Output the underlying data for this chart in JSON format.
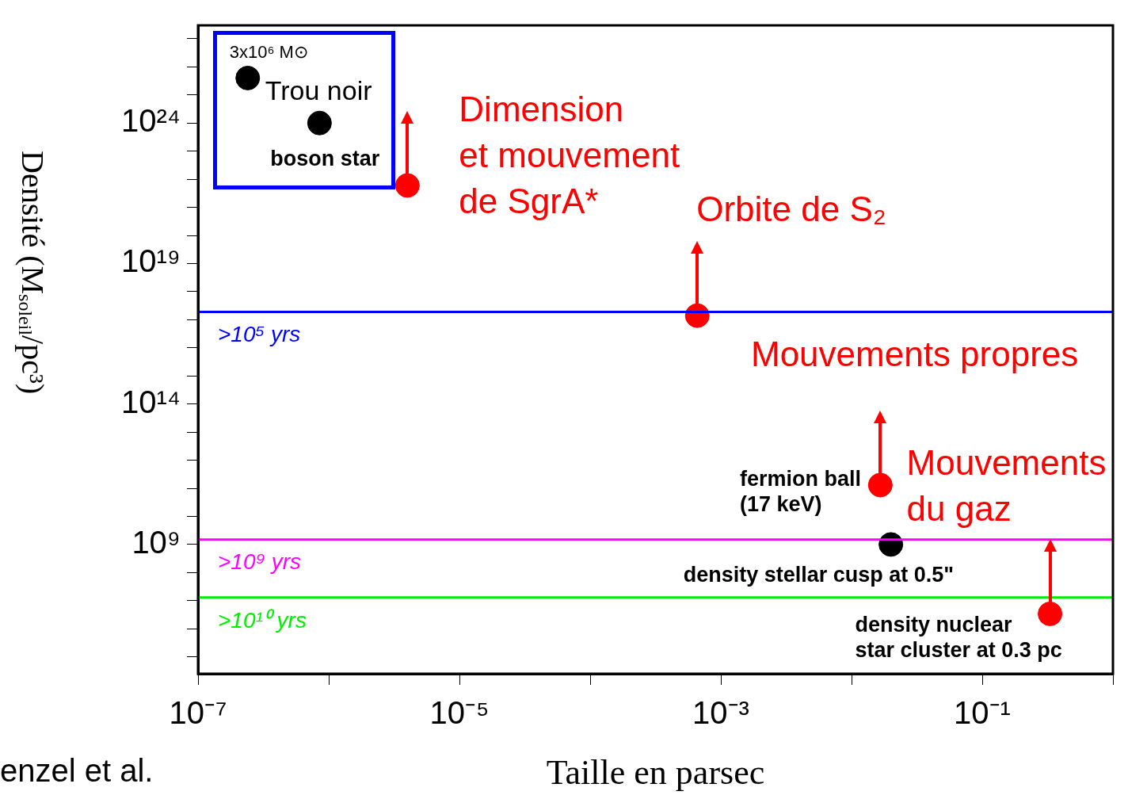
{
  "chart_data": {
    "type": "scatter",
    "xlabel": "Taille en parsec",
    "ylabel": "Densité (M$_{soleil}$/pc³)",
    "log": "xy",
    "grid": false,
    "legend": false,
    "marker": "circle",
    "xlim": [
      1e-07,
      1
    ],
    "ylim": [
      25000.0,
      3e+27
    ],
    "xticks": [
      {
        "value": 1e-07,
        "label": "10⁻⁷"
      },
      {
        "value": 1e-06,
        "label": null
      },
      {
        "value": 1e-05,
        "label": "10⁻⁵"
      },
      {
        "value": 0.0001,
        "label": null
      },
      {
        "value": 0.001,
        "label": "10⁻³"
      },
      {
        "value": 0.01,
        "label": null
      },
      {
        "value": 0.1,
        "label": "10⁻¹"
      },
      {
        "value": 1,
        "label": null
      }
    ],
    "yticks": [
      {
        "value": 100000.0,
        "label": null
      },
      {
        "value": 1000000.0,
        "label": null
      },
      {
        "value": 10000000.0,
        "label": null
      },
      {
        "value": 100000000.0,
        "label": null
      },
      {
        "value": 1000000000.0,
        "label": "10⁹"
      },
      {
        "value": 10000000000.0,
        "label": null
      },
      {
        "value": 100000000000.0,
        "label": null
      },
      {
        "value": 1000000000000.0,
        "label": null
      },
      {
        "value": 10000000000000.0,
        "label": null
      },
      {
        "value": 100000000000000.0,
        "label": "10¹⁴"
      },
      {
        "value": 1000000000000000.0,
        "label": null
      },
      {
        "value": 1e+16,
        "label": null
      },
      {
        "value": 1e+17,
        "label": null
      },
      {
        "value": 1e+18,
        "label": null
      },
      {
        "value": 1e+19,
        "label": "10¹⁹"
      },
      {
        "value": 1e+20,
        "label": null
      },
      {
        "value": 1e+21,
        "label": null
      },
      {
        "value": 1e+22,
        "label": null
      },
      {
        "value": 1e+23,
        "label": null
      },
      {
        "value": 1e+24,
        "label": "10²⁴"
      },
      {
        "value": 1e+25,
        "label": null
      },
      {
        "value": 1e+26,
        "label": null
      },
      {
        "value": 1e+27,
        "label": null
      }
    ],
    "series": [
      {
        "color": "#000000",
        "x": [
          2.4e-07,
          8.5e-07,
          0.02
        ],
        "values": [
          4e+25,
          1e+24,
          1000000000.0
        ]
      },
      {
        "color": "#ff0000",
        "x": [
          4e-06,
          0.00066,
          0.0166,
          0.33
        ],
        "values": [
          6e+21,
          1.4e+17,
          130000000000.0,
          3400000.0
        ]
      }
    ],
    "ref_lines": [
      {
        "axis": "y",
        "value": 1.9e+17,
        "label": ">10⁵ yrs",
        "color": "#0000ff"
      },
      {
        "axis": "y",
        "value": 1500000000.0,
        "label": ">10⁹ yrs",
        "color": "#ff00ff"
      },
      {
        "axis": "y",
        "value": 13000000.0,
        "label": ">10¹⁰ yrs",
        "color": "#00ee00"
      }
    ],
    "annotations": [
      {
        "text": "3x10⁶ M⊙",
        "x": 2.4e-07,
        "y": 4e+25
      },
      {
        "text": "Trou noir",
        "x": 2.4e-07,
        "y": 4e+25
      },
      {
        "text": "boson star",
        "x": 8.5e-07,
        "y": 1e+24
      },
      {
        "text": "Dimension\net mouvement\nde SgrA*",
        "x": 4e-06,
        "y": 6e+21
      },
      {
        "text": "Orbite de S₂",
        "x": 0.00066,
        "y": 1.4e+17
      },
      "Mouvements propres",
      "fermion ball\n(17 keV)",
      {
        "text": "density stellar cusp at 0.5\"",
        "x": 0.02,
        "y": 1000000000.0
      },
      {
        "text": "Mouvements\ndu gaz",
        "x": 0.33,
        "y": 3400000.0
      },
      {
        "text": "density nuclear\nstar cluster at 0.3 pc",
        "x": 0.33,
        "y": 3400000.0
      },
      "enzel et al."
    ]
  }
}
